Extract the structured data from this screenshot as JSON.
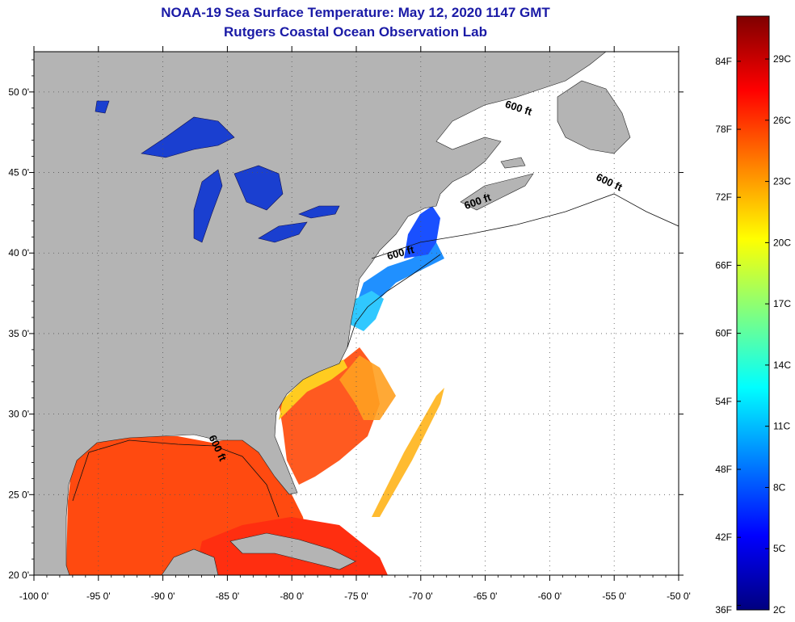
{
  "title": {
    "line1": "NOAA-19 Sea Surface Temperature:  May 12, 2020 1147 GMT",
    "line2": "Rutgers Coastal Ocean Observation Lab"
  },
  "map": {
    "lon_range": [
      -100,
      -50
    ],
    "lat_range": [
      20,
      52.5
    ],
    "lon_ticks": [
      {
        "value": -100,
        "label": "-100 0'"
      },
      {
        "value": -95,
        "label": "-95 0'"
      },
      {
        "value": -90,
        "label": "-90 0'"
      },
      {
        "value": -85,
        "label": "-85 0'"
      },
      {
        "value": -80,
        "label": "-80 0'"
      },
      {
        "value": -75,
        "label": "-75 0'"
      },
      {
        "value": -70,
        "label": "-70 0'"
      },
      {
        "value": -65,
        "label": "-65 0'"
      },
      {
        "value": -60,
        "label": "-60 0'"
      },
      {
        "value": -55,
        "label": "-55 0'"
      },
      {
        "value": -50,
        "label": "-50 0'"
      }
    ],
    "lat_ticks": [
      {
        "value": 20,
        "label": "20 0'"
      },
      {
        "value": 25,
        "label": "25 0'"
      },
      {
        "value": 30,
        "label": "30 0'"
      },
      {
        "value": 35,
        "label": "35 0'"
      },
      {
        "value": 40,
        "label": "40 0'"
      },
      {
        "value": 45,
        "label": "45 0'"
      },
      {
        "value": 50,
        "label": "50 0'"
      }
    ],
    "isobath_labels": [
      {
        "text": "600 ft",
        "lon": -62.5,
        "lat": 48.8,
        "rotate": 18
      },
      {
        "text": "600 ft",
        "lon": -55.5,
        "lat": 44.2,
        "rotate": 25
      },
      {
        "text": "600 ft",
        "lon": -65.5,
        "lat": 43.0,
        "rotate": -20
      },
      {
        "text": "600 ft",
        "lon": -71.5,
        "lat": 39.8,
        "rotate": -15
      },
      {
        "text": "600 ft",
        "lon": -86.0,
        "lat": 27.8,
        "rotate": 65
      }
    ],
    "colors": {
      "land": "#b4b4b4",
      "ocean_nodata": "#ffffff",
      "grid": "#555555"
    }
  },
  "colorbar": {
    "stops": [
      "#00007f",
      "#0000ff",
      "#0080ff",
      "#00ffff",
      "#80ff80",
      "#ffff00",
      "#ff8000",
      "#ff0000",
      "#7f0000"
    ],
    "fahrenheit": [
      {
        "value": 36,
        "label": "36F"
      },
      {
        "value": 42,
        "label": "42F"
      },
      {
        "value": 48,
        "label": "48F"
      },
      {
        "value": 54,
        "label": "54F"
      },
      {
        "value": 60,
        "label": "60F"
      },
      {
        "value": 66,
        "label": "66F"
      },
      {
        "value": 72,
        "label": "72F"
      },
      {
        "value": 78,
        "label": "78F"
      },
      {
        "value": 84,
        "label": "84F"
      }
    ],
    "celsius": [
      {
        "value": 2,
        "label": "2C"
      },
      {
        "value": 5,
        "label": "5C"
      },
      {
        "value": 8,
        "label": "8C"
      },
      {
        "value": 11,
        "label": "11C"
      },
      {
        "value": 14,
        "label": "14C"
      },
      {
        "value": 17,
        "label": "17C"
      },
      {
        "value": 20,
        "label": "20C"
      },
      {
        "value": 23,
        "label": "23C"
      },
      {
        "value": 26,
        "label": "26C"
      },
      {
        "value": 29,
        "label": "29C"
      }
    ]
  }
}
